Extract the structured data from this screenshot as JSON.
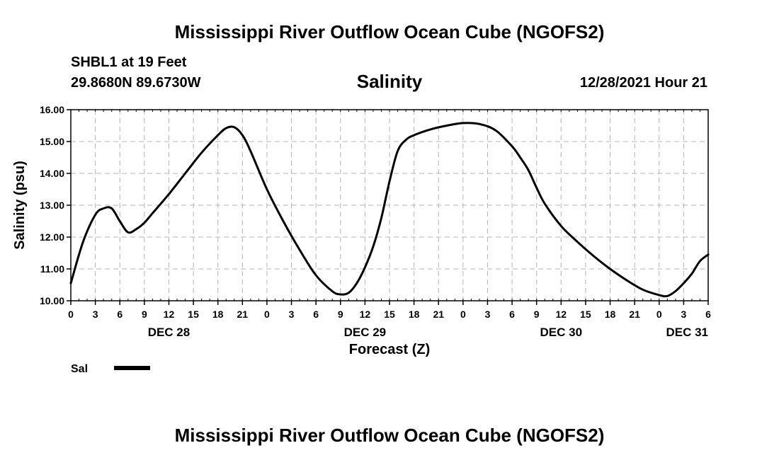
{
  "header": {
    "title": "Mississippi River Outflow Ocean Cube (NGOFS2)",
    "station": "SHBL1 at 19 Feet",
    "coords": "29.8680N  89.6730W",
    "datetime": "12/28/2021 Hour 21"
  },
  "footer": {
    "title": "Mississippi River Outflow Ocean Cube (NGOFS2)"
  },
  "colors": {
    "line": "#000000",
    "grid": "#b4b4b4",
    "background": "#ffffff"
  },
  "chart_data": {
    "type": "line",
    "title": "Salinity",
    "xlabel": "Forecast (Z)",
    "ylabel": "Salinity (psu)",
    "grid": true,
    "xlim": [
      0,
      78
    ],
    "ylim": [
      10.0,
      16.0
    ],
    "y_ticks": [
      "10.00",
      "11.00",
      "12.00",
      "13.00",
      "14.00",
      "15.00",
      "16.00"
    ],
    "x_tick_labels": [
      "0",
      "3",
      "6",
      "9",
      "12",
      "15",
      "18",
      "21",
      "0",
      "3",
      "6",
      "9",
      "12",
      "15",
      "18",
      "21",
      "0",
      "3",
      "6",
      "9",
      "12",
      "15",
      "18",
      "21",
      "0",
      "3",
      "6"
    ],
    "day_labels": [
      {
        "label": "DEC 28",
        "hour": 12
      },
      {
        "label": "DEC 29",
        "hour": 36
      },
      {
        "label": "DEC 30",
        "hour": 60
      },
      {
        "label": "DEC 31",
        "hour": 78
      }
    ],
    "legend": {
      "position": "bottom-left",
      "entries": [
        "Sal"
      ]
    },
    "series": [
      {
        "name": "Sal",
        "x": [
          0,
          1.5,
          3,
          4,
          5,
          6,
          7,
          8,
          9,
          10,
          12,
          14,
          16,
          18,
          19,
          20,
          21,
          22,
          24,
          26,
          28,
          30,
          32,
          33,
          34,
          35,
          36,
          37,
          38,
          39,
          40,
          41,
          42,
          44,
          46,
          48,
          50,
          52,
          54,
          55,
          56,
          57,
          58,
          60,
          62,
          64,
          66,
          68,
          70,
          72,
          73,
          74,
          75,
          76,
          77,
          78
        ],
        "values": [
          10.55,
          11.85,
          12.7,
          12.9,
          12.9,
          12.5,
          12.15,
          12.25,
          12.45,
          12.75,
          13.35,
          14.0,
          14.65,
          15.2,
          15.42,
          15.45,
          15.2,
          14.7,
          13.5,
          12.5,
          11.6,
          10.8,
          10.3,
          10.2,
          10.25,
          10.55,
          11.05,
          11.7,
          12.6,
          13.75,
          14.7,
          15.05,
          15.2,
          15.38,
          15.5,
          15.58,
          15.55,
          15.35,
          14.85,
          14.5,
          14.1,
          13.55,
          13.05,
          12.35,
          11.85,
          11.4,
          11.0,
          10.65,
          10.35,
          10.18,
          10.15,
          10.3,
          10.55,
          10.85,
          11.25,
          11.45
        ]
      }
    ]
  }
}
